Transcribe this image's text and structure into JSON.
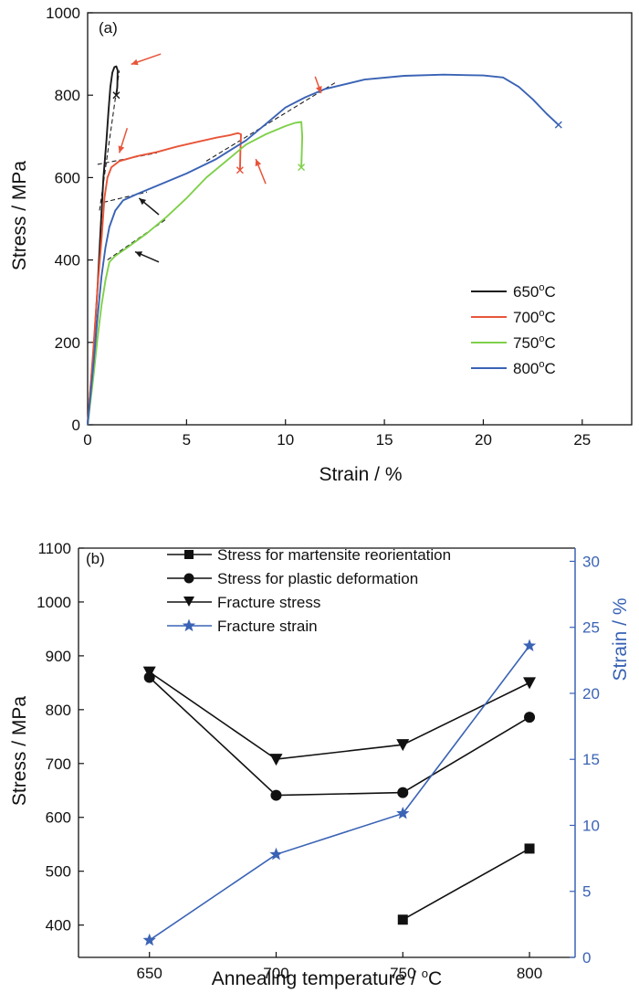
{
  "chart_data": [
    {
      "type": "line",
      "panel_label": "(a)",
      "xlabel": "Strain / %",
      "ylabel": "Stress / MPa",
      "xlim": [
        0,
        27.5
      ],
      "ylim": [
        0,
        1000
      ],
      "xticks": [
        0,
        5,
        10,
        15,
        20,
        25
      ],
      "yticks": [
        0,
        200,
        400,
        600,
        800,
        1000
      ],
      "legend_position": "bottom-right",
      "series": [
        {
          "name": "650°C",
          "legend_base": "650",
          "legend_sup": "o",
          "legend_unit": "C",
          "color": "#1a1a1a",
          "points": [
            [
              0,
              0
            ],
            [
              0.3,
              180
            ],
            [
              0.5,
              330
            ],
            [
              0.65,
              470
            ],
            [
              0.8,
              600
            ],
            [
              0.95,
              690
            ],
            [
              1.05,
              760
            ],
            [
              1.15,
              820
            ],
            [
              1.25,
              855
            ],
            [
              1.35,
              868
            ],
            [
              1.45,
              870
            ],
            [
              1.52,
              860
            ],
            [
              1.5,
              820
            ],
            [
              1.45,
              800
            ]
          ],
          "fracture": [
            1.45,
            800
          ]
        },
        {
          "name": "700°C",
          "legend_base": "700",
          "legend_sup": "o",
          "legend_unit": "C",
          "color": "#e8553a",
          "points": [
            [
              0,
              0
            ],
            [
              0.3,
              190
            ],
            [
              0.5,
              330
            ],
            [
              0.7,
              450
            ],
            [
              0.85,
              550
            ],
            [
              1.0,
              600
            ],
            [
              1.2,
              625
            ],
            [
              1.6,
              640
            ],
            [
              2.5,
              652
            ],
            [
              3.5,
              662
            ],
            [
              4.5,
              675
            ],
            [
              5.5,
              686
            ],
            [
              6.5,
              697
            ],
            [
              7.2,
              703
            ],
            [
              7.6,
              708
            ],
            [
              7.75,
              705
            ],
            [
              7.72,
              660
            ],
            [
              7.7,
              618
            ]
          ],
          "fracture": [
            7.7,
            618
          ]
        },
        {
          "name": "750°C",
          "legend_base": "750",
          "legend_sup": "o",
          "legend_unit": "C",
          "color": "#7fd04a",
          "points": [
            [
              0,
              0
            ],
            [
              0.3,
              120
            ],
            [
              0.5,
              210
            ],
            [
              0.7,
              290
            ],
            [
              0.9,
              350
            ],
            [
              1.1,
              395
            ],
            [
              1.4,
              410
            ],
            [
              2.0,
              430
            ],
            [
              3.0,
              465
            ],
            [
              4.0,
              505
            ],
            [
              5.0,
              550
            ],
            [
              6.0,
              600
            ],
            [
              7.0,
              640
            ],
            [
              8.0,
              680
            ],
            [
              9.0,
              705
            ],
            [
              10.0,
              725
            ],
            [
              10.5,
              733
            ],
            [
              10.8,
              735
            ],
            [
              10.85,
              700
            ],
            [
              10.8,
              625
            ]
          ],
          "fracture": [
            10.8,
            625
          ]
        },
        {
          "name": "800°C",
          "legend_base": "800",
          "legend_sup": "o",
          "legend_unit": "C",
          "color": "#3a63b5",
          "points": [
            [
              0,
              0
            ],
            [
              0.3,
              150
            ],
            [
              0.5,
              260
            ],
            [
              0.7,
              360
            ],
            [
              0.9,
              430
            ],
            [
              1.1,
              480
            ],
            [
              1.4,
              520
            ],
            [
              1.8,
              545
            ],
            [
              2.5,
              560
            ],
            [
              3.5,
              580
            ],
            [
              5.0,
              610
            ],
            [
              6.5,
              645
            ],
            [
              8.0,
              690
            ],
            [
              9.0,
              730
            ],
            [
              10.0,
              770
            ],
            [
              11.0,
              795
            ],
            [
              12.0,
              815
            ],
            [
              14.0,
              838
            ],
            [
              16.0,
              847
            ],
            [
              18.0,
              850
            ],
            [
              20.0,
              848
            ],
            [
              21.0,
              843
            ],
            [
              21.8,
              820
            ],
            [
              22.5,
              790
            ],
            [
              23.2,
              755
            ],
            [
              23.8,
              728
            ]
          ],
          "fracture": [
            23.8,
            728
          ]
        }
      ],
      "dashed_tangents": [
        [
          [
            0.5,
            632
          ],
          [
            3.5,
            660
          ]
        ],
        [
          [
            0.8,
            540
          ],
          [
            3.0,
            565
          ]
        ],
        [
          [
            1.0,
            400
          ],
          [
            4.0,
            500
          ]
        ],
        [
          [
            6.0,
            640
          ],
          [
            12.5,
            830
          ]
        ],
        [
          [
            0.6,
            520
          ],
          [
            1.6,
            860
          ]
        ],
        [
          [
            6.5,
            645
          ],
          [
            8.0,
            690
          ]
        ]
      ],
      "arrows": [
        {
          "color": "#e8553a",
          "from": [
            3.7,
            900
          ],
          "to": [
            2.2,
            875
          ]
        },
        {
          "color": "#e8553a",
          "from": [
            2.0,
            720
          ],
          "to": [
            1.6,
            660
          ]
        },
        {
          "color": "#e8553a",
          "from": [
            11.5,
            845
          ],
          "to": [
            11.8,
            805
          ]
        },
        {
          "color": "#e8553a",
          "from": [
            9.0,
            585
          ],
          "to": [
            8.5,
            645
          ]
        },
        {
          "color": "#1a1a1a",
          "from": [
            3.6,
            510
          ],
          "to": [
            2.6,
            550
          ]
        },
        {
          "color": "#1a1a1a",
          "from": [
            3.6,
            395
          ],
          "to": [
            2.4,
            420
          ]
        }
      ]
    },
    {
      "type": "line",
      "panel_label": "(b)",
      "xlabel_base": "Annealing temperature / ",
      "xlabel_sup": "o",
      "xlabel_unit": "C",
      "ylabel": "Stress / MPa",
      "y2label": "Strain / %",
      "xlim": [
        622,
        818
      ],
      "ylim": [
        340,
        1100
      ],
      "y2lim": [
        0,
        31
      ],
      "xticks": [
        650,
        700,
        750,
        800
      ],
      "yticks": [
        400,
        500,
        600,
        700,
        800,
        900,
        1000,
        1100
      ],
      "y2ticks": [
        0,
        5,
        10,
        15,
        20,
        25,
        30
      ],
      "legend_position": "top-center",
      "series": [
        {
          "name": "Stress for martensite reorientation",
          "marker": "square",
          "axis": "left",
          "color": "#111111",
          "x": [
            750,
            800
          ],
          "values": [
            410,
            542
          ]
        },
        {
          "name": "Stress for plastic deformation",
          "marker": "circle",
          "axis": "left",
          "color": "#111111",
          "x": [
            650,
            700,
            750,
            800
          ],
          "values": [
            860,
            641,
            646,
            786
          ]
        },
        {
          "name": "Fracture stress",
          "marker": "triangle-down",
          "axis": "left",
          "color": "#111111",
          "x": [
            650,
            700,
            750,
            800
          ],
          "values": [
            870,
            708,
            735,
            850
          ]
        },
        {
          "name": "Fracture strain",
          "marker": "star",
          "axis": "right",
          "color": "#3a63b5",
          "x": [
            650,
            700,
            750,
            800
          ],
          "values": [
            1.3,
            7.8,
            10.9,
            23.6
          ]
        }
      ]
    }
  ]
}
